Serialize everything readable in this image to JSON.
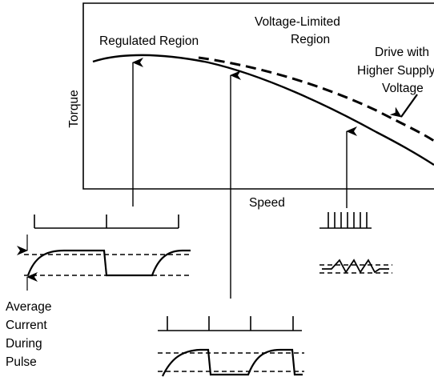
{
  "labels": {
    "regulated_region": "Regulated Region",
    "voltage_limited_line1": "Voltage-Limited",
    "voltage_limited_line2": "Region",
    "higher_supply_line1": "Drive with",
    "higher_supply_line2": "Higher Supply",
    "higher_supply_line3": "Voltage",
    "y_axis": "Torque",
    "x_axis": "Speed",
    "avg_current_line1": "Average",
    "avg_current_line2": "Current",
    "avg_current_line3": "During",
    "avg_current_line4": "Pulse"
  }
}
